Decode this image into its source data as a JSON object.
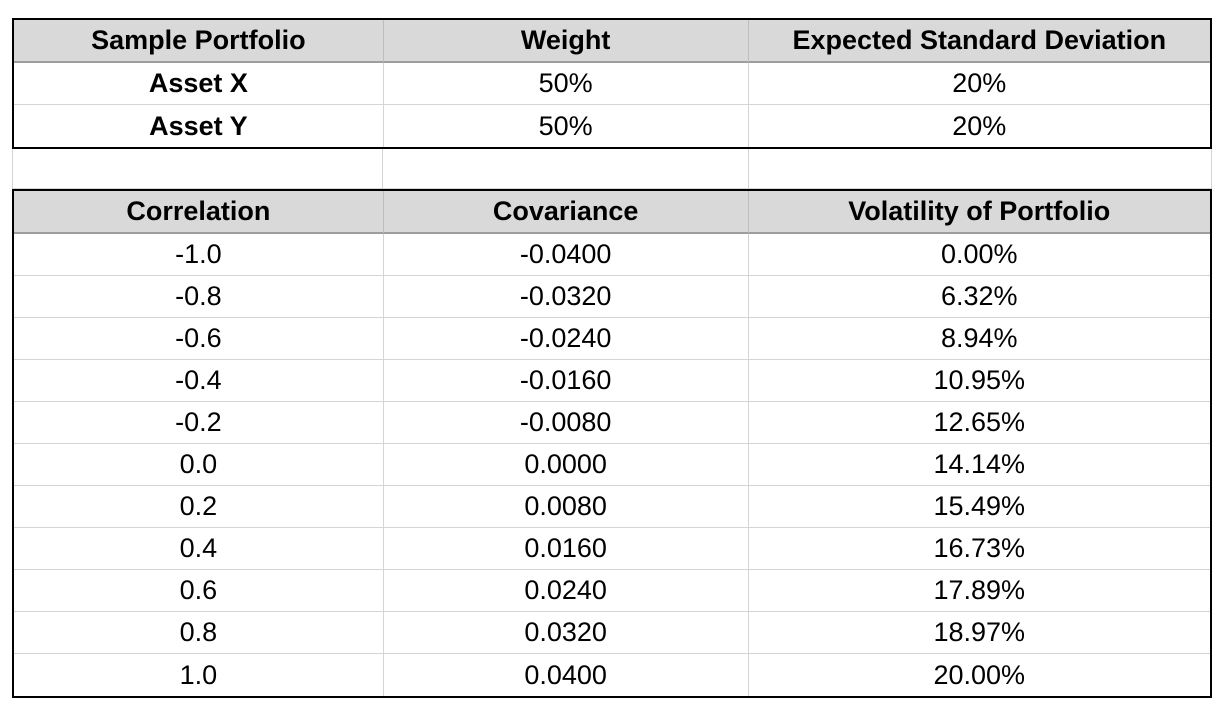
{
  "portfolio_table": {
    "headers": [
      "Sample Portfolio",
      "Weight",
      "Expected Standard Deviation"
    ],
    "rows": [
      [
        "Asset X",
        "50%",
        "20%"
      ],
      [
        "Asset Y",
        "50%",
        "20%"
      ]
    ]
  },
  "correlation_table": {
    "headers": [
      "Correlation",
      "Covariance",
      "Volatility of Portfolio"
    ],
    "rows": [
      [
        "-1.0",
        "-0.0400",
        "0.00%"
      ],
      [
        "-0.8",
        "-0.0320",
        "6.32%"
      ],
      [
        "-0.6",
        "-0.0240",
        "8.94%"
      ],
      [
        "-0.4",
        "-0.0160",
        "10.95%"
      ],
      [
        "-0.2",
        "-0.0080",
        "12.65%"
      ],
      [
        "0.0",
        "0.0000",
        "14.14%"
      ],
      [
        "0.2",
        "0.0080",
        "15.49%"
      ],
      [
        "0.4",
        "0.0160",
        "16.73%"
      ],
      [
        "0.6",
        "0.0240",
        "17.89%"
      ],
      [
        "0.8",
        "0.0320",
        "18.97%"
      ],
      [
        "1.0",
        "0.0400",
        "20.00%"
      ]
    ]
  }
}
